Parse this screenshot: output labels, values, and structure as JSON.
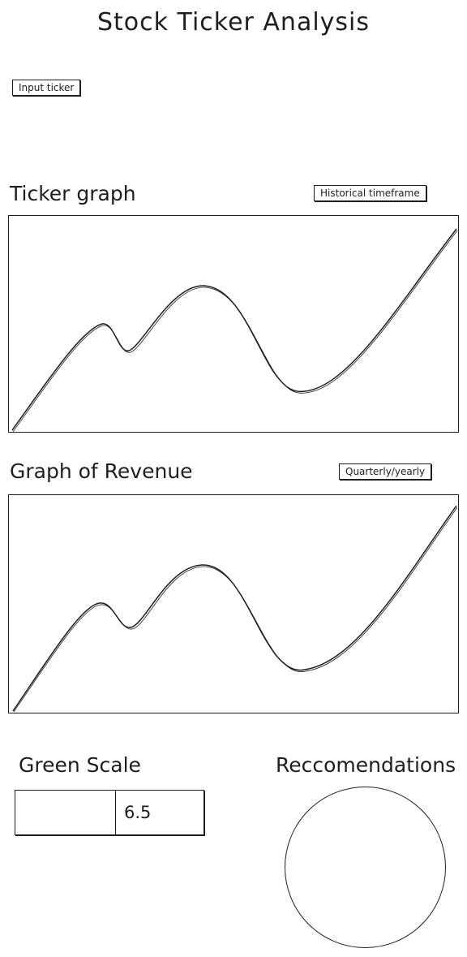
{
  "page_title": "Stock Ticker Analysis",
  "ticker_input": {
    "label": "Input ticker"
  },
  "ticker_section": {
    "title": "Ticker graph",
    "timeframe_button": "Historical timeframe"
  },
  "revenue_section": {
    "title": "Graph of Revenue",
    "period_button": "Quarterly/yearly"
  },
  "green_scale": {
    "title": "Green Scale",
    "left_value": "",
    "value": "6.5"
  },
  "recommendations": {
    "title": "Reccomendations"
  },
  "colors": {
    "line": "#1e1e1e",
    "background": "#ffffff"
  }
}
